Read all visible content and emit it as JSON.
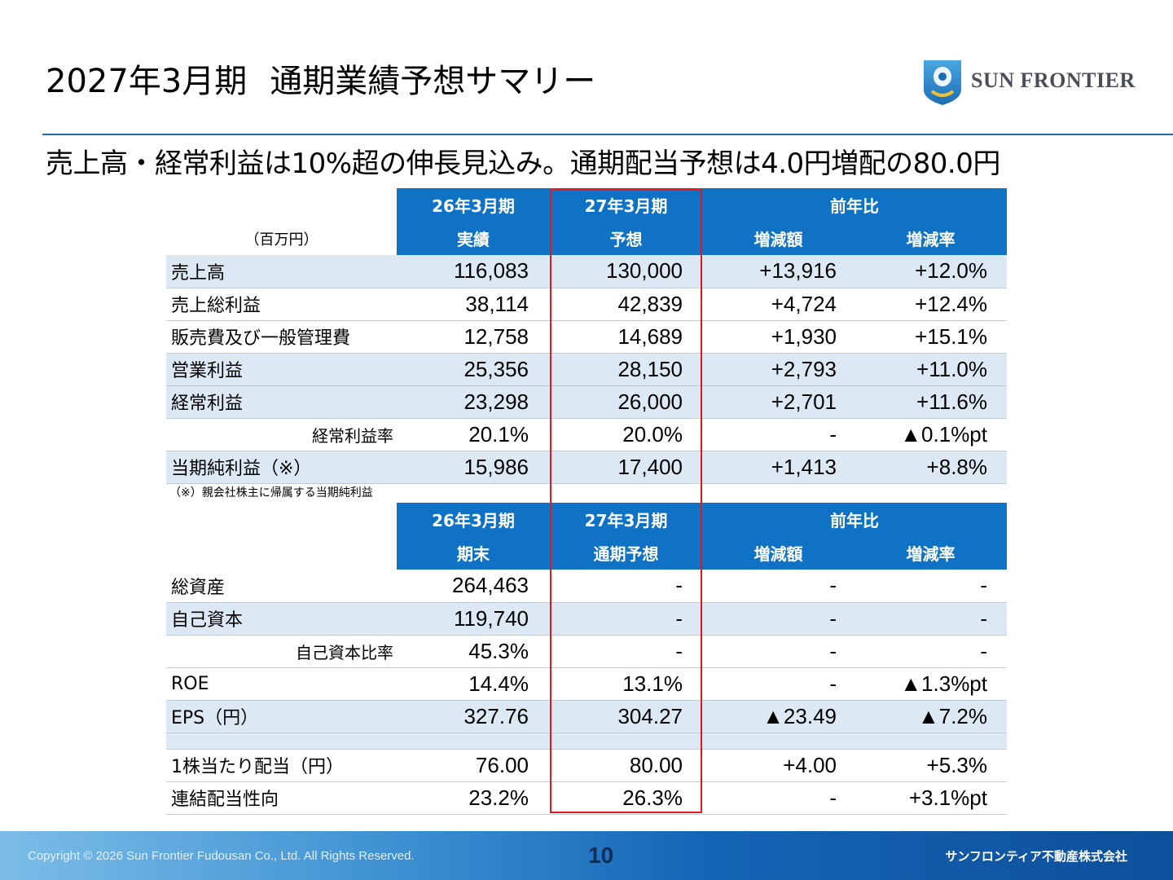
{
  "header": {
    "title_period": "2027年3月期",
    "title_main": "通期業績予想サマリー",
    "logo_text": "SUN FRONTIER"
  },
  "subtitle": "売上高・経常利益は10%超の伸長見込み。通期配当予想は4.0円増配の80.0円",
  "pl_table": {
    "unit": "（百万円）",
    "head": {
      "col1_top": "26年3月期",
      "col1_bottom": "実績",
      "col2_top": "27年3月期",
      "col2_bottom": "予想",
      "yoy": "前年比",
      "yoy_amount": "増減額",
      "yoy_rate": "増減率"
    },
    "rows": [
      {
        "label": "売上高",
        "v1": "116,083",
        "v2": "130,000",
        "v3": "+13,916",
        "v4": "+12.0%"
      },
      {
        "label": "売上総利益",
        "v1": "38,114",
        "v2": "42,839",
        "v3": "+4,724",
        "v4": "+12.4%"
      },
      {
        "label": "販売費及び一般管理費",
        "v1": "12,758",
        "v2": "14,689",
        "v3": "+1,930",
        "v4": "+15.1%"
      },
      {
        "label": "営業利益",
        "v1": "25,356",
        "v2": "28,150",
        "v3": "+2,793",
        "v4": "+11.0%"
      },
      {
        "label": "経常利益",
        "v1": "23,298",
        "v2": "26,000",
        "v3": "+2,701",
        "v4": "+11.6%"
      },
      {
        "label": "経常利益率",
        "v1": "20.1%",
        "v2": "20.0%",
        "v3": "-",
        "v4": "▲0.1%pt"
      },
      {
        "label": "当期純利益（※）",
        "v1": "15,986",
        "v2": "17,400",
        "v3": "+1,413",
        "v4": "+8.8%"
      }
    ],
    "note": "（※）親会社株主に帰属する当期純利益"
  },
  "bs_table": {
    "head": {
      "col1_top": "26年3月期",
      "col1_bottom": "期末",
      "col2_top": "27年3月期",
      "col2_bottom": "通期予想",
      "yoy": "前年比",
      "yoy_amount": "増減額",
      "yoy_rate": "増減率"
    },
    "rows": [
      {
        "label": "総資産",
        "v1": "264,463",
        "v2": "-",
        "v3": "-",
        "v4": "-"
      },
      {
        "label": "自己資本",
        "v1": "119,740",
        "v2": "-",
        "v3": "-",
        "v4": "-"
      },
      {
        "label": "自己資本比率",
        "v1": "45.3%",
        "v2": "-",
        "v3": "-",
        "v4": "-"
      },
      {
        "label": "ROE",
        "v1": "14.4%",
        "v2": "13.1%",
        "v3": "-",
        "v4": "▲1.3%pt"
      },
      {
        "label": "EPS（円）",
        "v1": "327.76",
        "v2": "304.27",
        "v3": "▲23.49",
        "v4": "▲7.2%"
      },
      {
        "label": "1株当たり配当（円）",
        "v1": "76.00",
        "v2": "80.00",
        "v3": "+4.00",
        "v4": "+5.3%"
      },
      {
        "label": "連結配当性向",
        "v1": "23.2%",
        "v2": "26.3%",
        "v3": "-",
        "v4": "+3.1%pt"
      }
    ]
  },
  "footer": {
    "copyright": "Copyright © 2026 Sun Frontier Fudousan Co., Ltd. All Rights Reserved.",
    "page_number": "10",
    "company": "サンフロンティア不動産株式会社"
  },
  "colors": {
    "header_blue": "#0f72c4",
    "row_shade": "#dce9f5",
    "highlight_red": "#e0191e",
    "title_rule": "#1f6aa5"
  }
}
